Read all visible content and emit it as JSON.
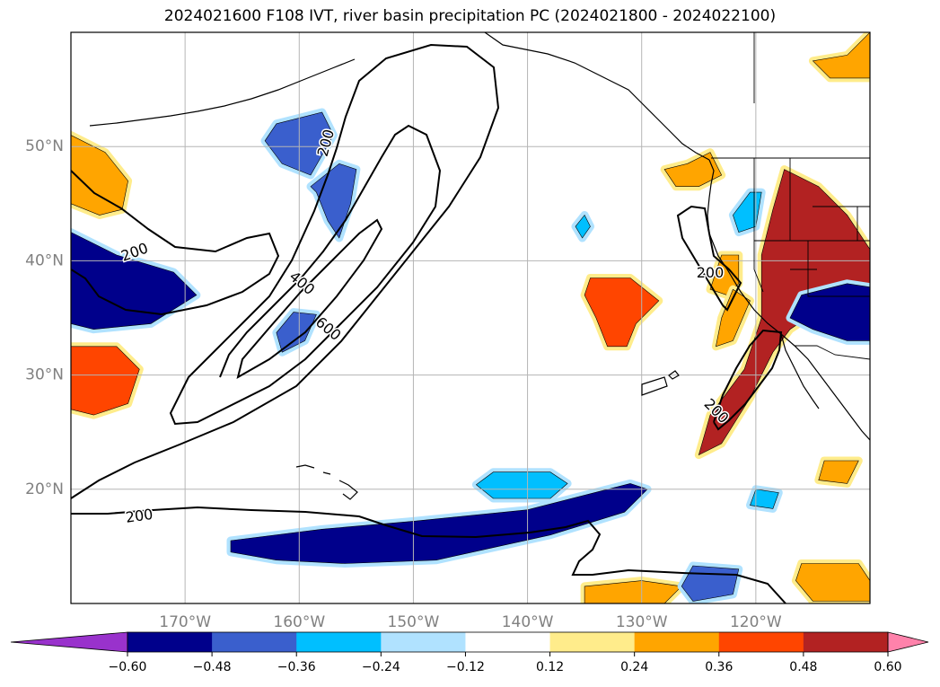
{
  "title": "2024021600 F108 IVT, river basin precipitation PC (2024021800 - 2024022100)",
  "chart_data": {
    "type": "heatmap",
    "title": "2024021600 F108 IVT, river basin precipitation PC (2024021800 - 2024022100)",
    "map_extent": {
      "lon": [
        -180,
        -110
      ],
      "lat": [
        10,
        60
      ]
    },
    "lat_ticks": [
      {
        "value": 20,
        "label": "20°N"
      },
      {
        "value": 30,
        "label": "30°N"
      },
      {
        "value": 40,
        "label": "40°N"
      },
      {
        "value": 50,
        "label": "50°N"
      }
    ],
    "lon_ticks": [
      {
        "value": -170,
        "label": "170°W"
      },
      {
        "value": -160,
        "label": "160°W"
      },
      {
        "value": -150,
        "label": "150°W"
      },
      {
        "value": -140,
        "label": "140°W"
      },
      {
        "value": -130,
        "label": "130°W"
      },
      {
        "value": -120,
        "label": "120°W"
      }
    ],
    "grid": true,
    "colorbar": {
      "levels": [
        -0.6,
        -0.48,
        -0.36,
        -0.24,
        -0.12,
        0.12,
        0.24,
        0.36,
        0.48,
        0.6
      ],
      "tick_labels": [
        "−0.60",
        "−0.48",
        "−0.36",
        "−0.24",
        "−0.12",
        "0.12",
        "0.24",
        "0.36",
        "0.48",
        "0.60"
      ],
      "colors": [
        "#9932cc",
        "#00008b",
        "#3a5fcd",
        "#00bfff",
        "#b0e2ff",
        "#ffffff",
        "#ffec8b",
        "#ffa500",
        "#ff4500",
        "#b22222",
        "#ff82ab"
      ],
      "extend": "both"
    },
    "ivt_contours": {
      "levels": [
        200,
        400,
        600
      ],
      "labels": [
        {
          "text": "200",
          "lon": -157.6,
          "lat": 50.3,
          "angle": 75
        },
        {
          "text": "200",
          "lon": -174.4,
          "lat": 40.7,
          "angle": 20
        },
        {
          "text": "400",
          "lon": -159.8,
          "lat": 38.0,
          "angle": -40
        },
        {
          "text": "600",
          "lon": -157.5,
          "lat": 34.0,
          "angle": -40
        },
        {
          "text": "200",
          "lon": -174.0,
          "lat": 17.6,
          "angle": 8
        },
        {
          "text": "200",
          "lon": -124.0,
          "lat": 38.9,
          "angle": 0
        },
        {
          "text": "200",
          "lon": -123.5,
          "lat": 26.8,
          "angle": -45
        }
      ]
    },
    "precip_pc_regions": [
      {
        "value": 0.3,
        "polygon": [
          [
            -180,
            51
          ],
          [
            -177,
            49.5
          ],
          [
            -175,
            47
          ],
          [
            -175.5,
            44.5
          ],
          [
            -177.5,
            44
          ],
          [
            -180,
            45
          ]
        ]
      },
      {
        "value": 0.42,
        "polygon": [
          [
            -180,
            32.5
          ],
          [
            -176,
            32.5
          ],
          [
            -174,
            30.5
          ],
          [
            -175,
            27.5
          ],
          [
            -178,
            26.5
          ],
          [
            -180,
            27
          ]
        ]
      },
      {
        "value": -0.5,
        "polygon": [
          [
            -180,
            42.5
          ],
          [
            -176,
            40.5
          ],
          [
            -171,
            39
          ],
          [
            -169,
            37
          ],
          [
            -173,
            34.5
          ],
          [
            -178,
            34
          ],
          [
            -180,
            34.5
          ]
        ]
      },
      {
        "value": -0.4,
        "polygon": [
          [
            -159,
            46.5
          ],
          [
            -156.5,
            48.5
          ],
          [
            -155,
            48
          ],
          [
            -155.5,
            45
          ],
          [
            -156.5,
            42
          ],
          [
            -157.5,
            43.5
          ],
          [
            -158.5,
            46
          ]
        ]
      },
      {
        "value": -0.4,
        "polygon": [
          [
            -162,
            52
          ],
          [
            -158,
            53
          ],
          [
            -157,
            51
          ],
          [
            -159,
            47.5
          ],
          [
            -161.5,
            48.5
          ],
          [
            -163,
            50.5
          ]
        ]
      },
      {
        "value": -0.4,
        "polygon": [
          [
            -160.5,
            35.5
          ],
          [
            -158.5,
            35.3
          ],
          [
            -159.5,
            33
          ],
          [
            -161.5,
            32
          ],
          [
            -162,
            33.7
          ]
        ]
      },
      {
        "value": -0.5,
        "polygon": [
          [
            -166,
            15.5
          ],
          [
            -158,
            16.5
          ],
          [
            -150,
            17.2
          ],
          [
            -140,
            18.2
          ],
          [
            -131,
            20.5
          ],
          [
            -129.5,
            20
          ],
          [
            -131.5,
            18
          ],
          [
            -138,
            16
          ],
          [
            -148,
            13.8
          ],
          [
            -156,
            13.5
          ],
          [
            -162,
            13.8
          ],
          [
            -166,
            14.5
          ]
        ]
      },
      {
        "value": -0.3,
        "polygon": [
          [
            -143,
            21.5
          ],
          [
            -138,
            21.5
          ],
          [
            -136.5,
            20.5
          ],
          [
            -138,
            19.2
          ],
          [
            -143,
            19.2
          ],
          [
            -144.5,
            20.4
          ]
        ]
      },
      {
        "value": 0.42,
        "polygon": [
          [
            -134.5,
            38.5
          ],
          [
            -131,
            38.5
          ],
          [
            -128.5,
            36.5
          ],
          [
            -130.5,
            34.5
          ],
          [
            -131.3,
            32.5
          ],
          [
            -133,
            32.5
          ],
          [
            -134,
            35
          ],
          [
            -135,
            37
          ]
        ]
      },
      {
        "value": 0.3,
        "polygon": [
          [
            -126,
            48.5
          ],
          [
            -124,
            49.5
          ],
          [
            -123,
            47.5
          ],
          [
            -125,
            46.5
          ],
          [
            -127,
            46.5
          ],
          [
            -128,
            48
          ]
        ]
      },
      {
        "value": 0.55,
        "polygon": [
          [
            -117.5,
            48
          ],
          [
            -114.5,
            46.5
          ],
          [
            -112,
            44
          ],
          [
            -110,
            41
          ],
          [
            -110,
            38
          ],
          [
            -114,
            36
          ],
          [
            -117,
            34
          ],
          [
            -118.5,
            32
          ],
          [
            -120.5,
            28
          ],
          [
            -123,
            24
          ],
          [
            -125,
            23
          ],
          [
            -124,
            26.5
          ],
          [
            -121,
            30.5
          ],
          [
            -119.5,
            35
          ],
          [
            -119.5,
            40.5
          ],
          [
            -118.5,
            44.5
          ]
        ]
      },
      {
        "value": -0.5,
        "polygon": [
          [
            -116,
            37
          ],
          [
            -112,
            38
          ],
          [
            -110,
            37.7
          ],
          [
            -110,
            33
          ],
          [
            -112,
            33
          ],
          [
            -115,
            34
          ],
          [
            -117,
            35
          ]
        ]
      },
      {
        "value": 0.3,
        "polygon": [
          [
            -123,
            40.5
          ],
          [
            -121.5,
            40.5
          ],
          [
            -121.5,
            38
          ],
          [
            -122.5,
            37
          ],
          [
            -124,
            37.5
          ]
        ]
      },
      {
        "value": 0.3,
        "polygon": [
          [
            -110,
            60
          ],
          [
            -112,
            58
          ],
          [
            -115,
            57.5
          ],
          [
            -113.5,
            56
          ],
          [
            -110,
            56
          ]
        ]
      },
      {
        "value": 0.3,
        "polygon": [
          [
            -135,
            11.5
          ],
          [
            -130,
            12
          ],
          [
            -126.5,
            11.5
          ],
          [
            -128,
            10
          ],
          [
            -135,
            10
          ]
        ]
      },
      {
        "value": -0.4,
        "polygon": [
          [
            -125.5,
            13.3
          ],
          [
            -121.5,
            13
          ],
          [
            -122,
            10.8
          ],
          [
            -125.5,
            10.2
          ],
          [
            -126.5,
            11.5
          ]
        ]
      },
      {
        "value": 0.3,
        "polygon": [
          [
            -116,
            13.5
          ],
          [
            -111,
            13.5
          ],
          [
            -110,
            12
          ],
          [
            -110,
            10.2
          ],
          [
            -115,
            10.2
          ],
          [
            -116.5,
            12
          ]
        ]
      },
      {
        "value": 0.3,
        "polygon": [
          [
            -114,
            22.5
          ],
          [
            -111,
            22.5
          ],
          [
            -112,
            20.5
          ],
          [
            -114.5,
            20.8
          ]
        ]
      },
      {
        "value": -0.3,
        "polygon": [
          [
            -120,
            20
          ],
          [
            -118,
            19.7
          ],
          [
            -118.5,
            18.3
          ],
          [
            -120.5,
            18.6
          ]
        ]
      },
      {
        "value": -0.3,
        "polygon": [
          [
            -120.5,
            46
          ],
          [
            -119.5,
            46
          ],
          [
            -120,
            43
          ],
          [
            -121.5,
            42.5
          ],
          [
            -122,
            44
          ]
        ]
      },
      {
        "value": 0.3,
        "polygon": [
          [
            -122,
            37.5
          ],
          [
            -120.5,
            36.5
          ],
          [
            -122,
            33
          ],
          [
            -123.5,
            32.5
          ],
          [
            -123,
            35
          ]
        ]
      },
      {
        "value": -0.3,
        "polygon": [
          [
            -135,
            44
          ],
          [
            -134.5,
            43
          ],
          [
            -135.2,
            42
          ],
          [
            -135.8,
            43
          ]
        ]
      }
    ]
  }
}
